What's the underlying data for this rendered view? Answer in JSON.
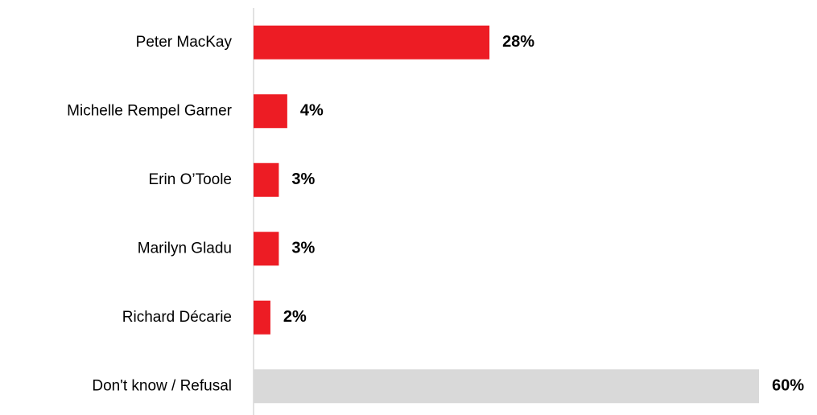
{
  "chart_data": {
    "type": "hbar",
    "categories": [
      "Peter MacKay",
      "Michelle Rempel Garner",
      "Erin O’Toole",
      "Marilyn Gladu",
      "Richard Décarie",
      "Don't know / Refusal"
    ],
    "values": [
      28,
      4,
      3,
      3,
      2,
      60
    ],
    "value_labels": [
      "28%",
      "4%",
      "3%",
      "3%",
      "2%",
      "60%"
    ],
    "colors": [
      "#ed1c24",
      "#ed1c24",
      "#ed1c24",
      "#ed1c24",
      "#ed1c24",
      "#d9d9d9"
    ]
  }
}
